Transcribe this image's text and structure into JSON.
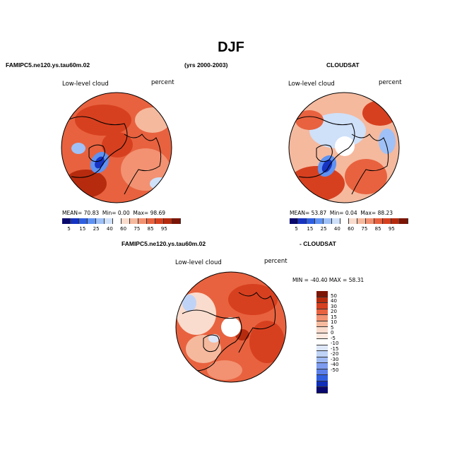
{
  "title": "DJF",
  "top_left_case": "FAMIPC5.ne120.ys.tau60m.02",
  "years": "(yrs 2000-2003)",
  "top_right_case": "CLOUDSAT",
  "panels": [
    {
      "label": "Low-level cloud",
      "units": "percent",
      "stats": {
        "mean_label": "MEAN=",
        "mean": "70.83",
        "min_label": "Min=",
        "min": "0.00",
        "max_label": "Max=",
        "max": "98.69"
      }
    },
    {
      "label": "Low-level cloud",
      "units": "percent",
      "stats": {
        "mean_label": "MEAN=",
        "mean": "53.87",
        "min_label": "Min=",
        "min": "0.04",
        "max_label": "Max=",
        "max": "88.23"
      }
    },
    {
      "label": "Low-level cloud",
      "units": "percent",
      "minmax": "MIN = -40.40  MAX =  58.31"
    }
  ],
  "diff_left_title": "FAMIPC5.ne120.ys.tau60m.02",
  "diff_right_title": "- CLOUDSAT",
  "colorbar": {
    "labels": [
      "5",
      "15",
      "25",
      "40",
      "60",
      "75",
      "85",
      "95"
    ],
    "colors": [
      "#08086e",
      "#1633c2",
      "#2f5fe0",
      "#5f92f2",
      "#9fc1f7",
      "#cfe0f9",
      "#ffffff",
      "#f9dccd",
      "#f5b99e",
      "#f29272",
      "#e8623f",
      "#d7401f",
      "#b62b0e",
      "#7c1506"
    ]
  },
  "diff_colorbar": {
    "labels": [
      "50",
      "40",
      "30",
      "20",
      "15",
      "10",
      "5",
      "0",
      "-5",
      "-10",
      "-15",
      "-20",
      "-30",
      "-40",
      "-50"
    ],
    "colors": [
      "#7c1506",
      "#b62b0e",
      "#d7401f",
      "#e8623f",
      "#f29272",
      "#f5b99e",
      "#f9dccd",
      "#fde9e0",
      "#ffffff",
      "#dde7f9",
      "#bfd3f7",
      "#9fbaf3",
      "#7d9cf0",
      "#5b7fea",
      "#2f5fe0",
      "#0f2fb8",
      "#08086e"
    ]
  }
}
